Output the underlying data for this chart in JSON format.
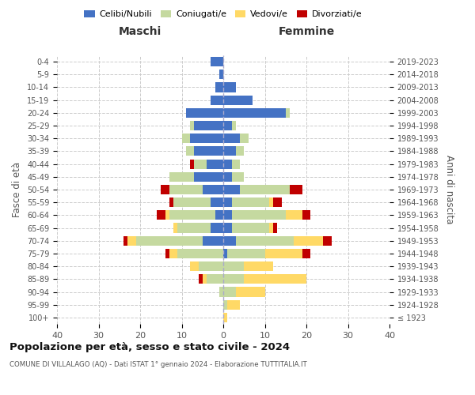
{
  "age_groups": [
    "100+",
    "95-99",
    "90-94",
    "85-89",
    "80-84",
    "75-79",
    "70-74",
    "65-69",
    "60-64",
    "55-59",
    "50-54",
    "45-49",
    "40-44",
    "35-39",
    "30-34",
    "25-29",
    "20-24",
    "15-19",
    "10-14",
    "5-9",
    "0-4"
  ],
  "birth_years": [
    "≤ 1923",
    "1924-1928",
    "1929-1933",
    "1934-1938",
    "1939-1943",
    "1944-1948",
    "1949-1953",
    "1954-1958",
    "1959-1963",
    "1964-1968",
    "1969-1973",
    "1974-1978",
    "1979-1983",
    "1984-1988",
    "1989-1993",
    "1994-1998",
    "1999-2003",
    "2004-2008",
    "2009-2013",
    "2014-2018",
    "2019-2023"
  ],
  "male_celibi": [
    0,
    0,
    0,
    0,
    0,
    0,
    5,
    3,
    2,
    3,
    5,
    7,
    4,
    7,
    8,
    7,
    9,
    3,
    2,
    1,
    3
  ],
  "male_coniugati": [
    0,
    0,
    1,
    4,
    6,
    11,
    16,
    8,
    11,
    9,
    8,
    6,
    3,
    2,
    2,
    1,
    0,
    0,
    0,
    0,
    0
  ],
  "male_vedovi": [
    0,
    0,
    0,
    1,
    2,
    2,
    2,
    1,
    1,
    0,
    0,
    0,
    0,
    0,
    0,
    0,
    0,
    0,
    0,
    0,
    0
  ],
  "male_divorziati": [
    0,
    0,
    0,
    1,
    0,
    1,
    1,
    0,
    2,
    1,
    2,
    0,
    1,
    0,
    0,
    0,
    0,
    0,
    0,
    0,
    0
  ],
  "female_celibi": [
    0,
    0,
    0,
    0,
    0,
    1,
    3,
    2,
    2,
    2,
    4,
    2,
    2,
    3,
    4,
    2,
    15,
    7,
    3,
    0,
    0
  ],
  "female_coniugati": [
    0,
    1,
    3,
    5,
    5,
    9,
    14,
    9,
    13,
    9,
    12,
    3,
    2,
    2,
    2,
    1,
    1,
    0,
    0,
    0,
    0
  ],
  "female_vedovi": [
    1,
    3,
    7,
    15,
    7,
    9,
    7,
    1,
    4,
    1,
    0,
    0,
    0,
    0,
    0,
    0,
    0,
    0,
    0,
    0,
    0
  ],
  "female_divorziati": [
    0,
    0,
    0,
    0,
    0,
    2,
    2,
    1,
    2,
    2,
    3,
    0,
    0,
    0,
    0,
    0,
    0,
    0,
    0,
    0,
    0
  ],
  "colors": {
    "celibi": "#4472C4",
    "coniugati": "#c5d9a0",
    "vedovi": "#FFD966",
    "divorziati": "#C00000"
  },
  "title": "Popolazione per età, sesso e stato civile - 2024",
  "subtitle": "COMUNE DI VILLALAGO (AQ) - Dati ISTAT 1° gennaio 2024 - Elaborazione TUTTITALIA.IT",
  "xlabel_left": "Maschi",
  "xlabel_right": "Femmine",
  "ylabel_left": "Fasce di età",
  "ylabel_right": "Anni di nascita",
  "xlim": 40,
  "legend_labels": [
    "Celibi/Nubili",
    "Coniugati/e",
    "Vedovi/e",
    "Divorziati/e"
  ],
  "bg_color": "#ffffff",
  "grid_color": "#cccccc"
}
